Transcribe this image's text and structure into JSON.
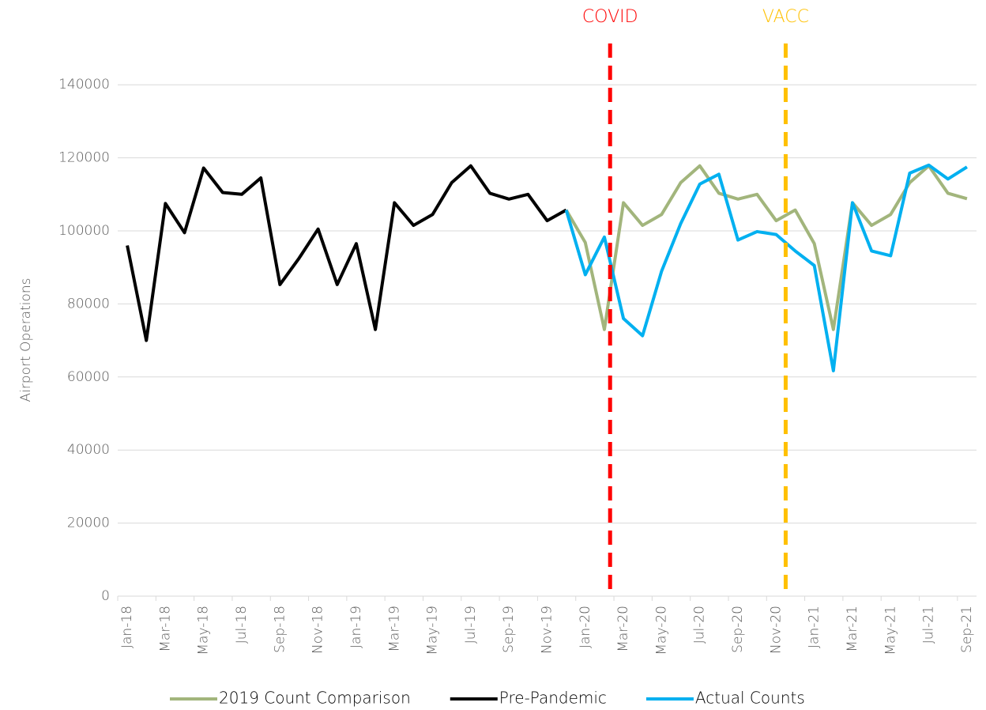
{
  "chart_data": {
    "type": "line",
    "y_label": "Airport Operations",
    "categories": [
      "Jan-18",
      null,
      "Mar-18",
      null,
      "May-18",
      null,
      "Jul-18",
      null,
      "Sep-18",
      null,
      "Nov-18",
      null,
      "Jan-19",
      null,
      "Mar-19",
      null,
      "May-19",
      null,
      "Jul-19",
      null,
      "Sep-19",
      null,
      "Nov-19",
      null,
      "Jan-20",
      null,
      "Mar-20",
      null,
      "May-20",
      null,
      "Jul-20",
      null,
      "Sep-20",
      null,
      "Nov-20",
      null,
      "Jan-21",
      null,
      "Mar-21",
      null,
      "May-21",
      null,
      "Jul-21",
      null,
      "Sep-21"
    ],
    "series": [
      {
        "name": "2019 Count Comparison",
        "color": "#a2b57c",
        "values": [
          null,
          null,
          null,
          null,
          null,
          null,
          null,
          null,
          null,
          null,
          null,
          null,
          null,
          null,
          null,
          null,
          null,
          null,
          null,
          null,
          null,
          null,
          null,
          105700,
          96800,
          73000,
          107700,
          101500,
          104500,
          113200,
          117800,
          110300,
          108700,
          110000,
          102800,
          105700,
          96500,
          73000,
          107700,
          101500,
          104500,
          113200,
          117800,
          110300,
          108800
        ]
      },
      {
        "name": "Pre-Pandemic",
        "color": "#000000",
        "values": [
          96000,
          70000,
          107500,
          99500,
          117200,
          110500,
          110000,
          114500,
          85300,
          92500,
          100500,
          85300,
          96500,
          73000,
          107700,
          101500,
          104500,
          113200,
          117800,
          110300,
          108700,
          110000,
          102800,
          105700,
          null,
          null,
          null,
          null,
          null,
          null,
          null,
          null,
          null,
          null,
          null,
          null,
          null,
          null,
          null,
          null,
          null,
          null,
          null,
          null,
          null
        ]
      },
      {
        "name": "Actual Counts",
        "color": "#00b0f0",
        "values": [
          null,
          null,
          null,
          null,
          null,
          null,
          null,
          null,
          null,
          null,
          null,
          null,
          null,
          null,
          null,
          null,
          null,
          null,
          null,
          null,
          null,
          null,
          null,
          105700,
          88000,
          98300,
          76000,
          71300,
          89000,
          102000,
          112800,
          115500,
          97500,
          99800,
          99000,
          94500,
          90500,
          61700,
          107700,
          94500,
          93200,
          115800,
          118000,
          114200,
          117500
        ]
      }
    ],
    "annotations": [
      {
        "label": "COVID",
        "x": 25.3,
        "color": "#ff0000"
      },
      {
        "label": "VACC",
        "x": 34.5,
        "color": "#ffc000"
      }
    ],
    "ylim": [
      0,
      150000
    ],
    "yticks": [
      0,
      20000,
      40000,
      60000,
      80000,
      100000,
      120000,
      140000
    ],
    "grid": true,
    "legend": "bottom"
  }
}
